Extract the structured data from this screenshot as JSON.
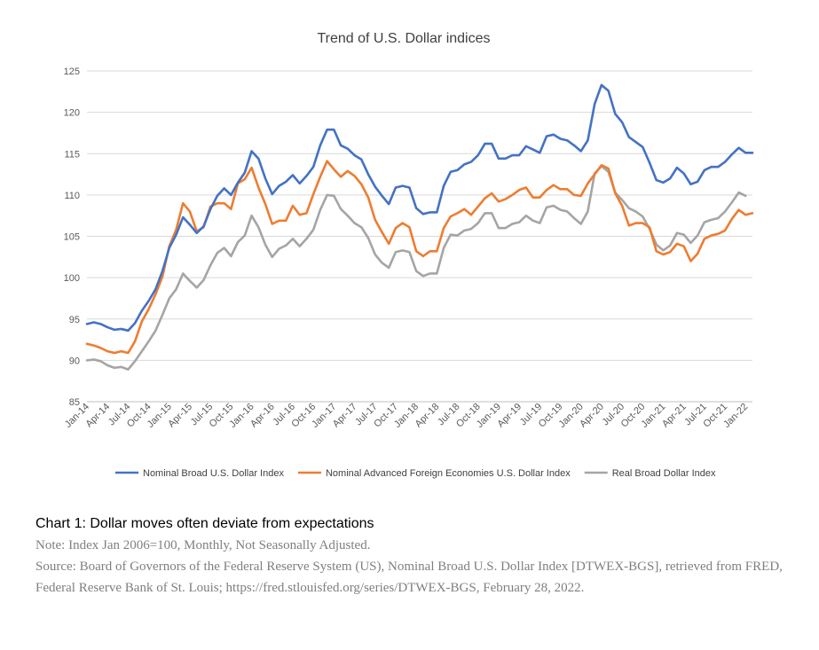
{
  "chart_data": {
    "type": "line",
    "title": "Trend of U.S. Dollar indices",
    "xlabel": "",
    "ylabel": "",
    "ylim": [
      85,
      125
    ],
    "yticks": [
      85,
      90,
      95,
      100,
      105,
      110,
      115,
      120,
      125
    ],
    "grid": true,
    "legend_position": "bottom",
    "x_tick_labels": [
      "Jan-14",
      "Apr-14",
      "Jul-14",
      "Oct-14",
      "Jan-15",
      "Apr-15",
      "Jul-15",
      "Oct-15",
      "Jan-16",
      "Apr-16",
      "Jul-16",
      "Oct-16",
      "Jan-17",
      "Apr-17",
      "Jul-17",
      "Oct-17",
      "Jan-18",
      "Apr-18",
      "Jul-18",
      "Oct-18",
      "Jan-19",
      "Apr-19",
      "Jul-19",
      "Oct-19",
      "Jan-20",
      "Apr-20",
      "Jul-20",
      "Oct-20",
      "Jan-21",
      "Apr-21",
      "Jul-21",
      "Oct-21",
      "Jan-22"
    ],
    "series": [
      {
        "name": "Nominal Broad U.S. Dollar Index",
        "color": "#4472C4",
        "values": [
          94.4,
          94.6,
          94.4,
          94.0,
          93.7,
          93.8,
          93.6,
          94.5,
          96.0,
          97.2,
          98.6,
          100.8,
          103.6,
          105.2,
          107.3,
          106.4,
          105.4,
          106.2,
          108.3,
          109.9,
          110.8,
          110.0,
          111.5,
          112.7,
          115.3,
          114.4,
          112.0,
          110.1,
          111.1,
          111.6,
          112.4,
          111.4,
          112.3,
          113.4,
          116.0,
          117.9,
          117.9,
          116.0,
          115.6,
          114.8,
          114.3,
          112.5,
          111.0,
          109.9,
          108.9,
          110.9,
          111.1,
          110.9,
          108.4,
          107.7,
          107.9,
          107.9,
          111.1,
          112.8,
          113.0,
          113.7,
          114.0,
          114.8,
          116.2,
          116.2,
          114.4,
          114.4,
          114.8,
          114.8,
          115.9,
          115.5,
          115.1,
          117.1,
          117.3,
          116.8,
          116.6,
          116.0,
          115.3,
          116.6,
          121.0,
          123.3,
          122.6,
          119.8,
          118.8,
          117.0,
          116.4,
          115.8,
          113.9,
          111.8,
          111.5,
          112.0,
          113.3,
          112.6,
          111.3,
          111.6,
          113.0,
          113.4,
          113.4,
          114.0,
          114.9,
          115.7,
          115.1,
          115.1
        ]
      },
      {
        "name": "Nominal Advanced Foreign Economies U.S. Dollar Index",
        "color": "#ED7D31",
        "values": [
          92.0,
          91.8,
          91.5,
          91.1,
          90.9,
          91.1,
          90.9,
          92.3,
          94.7,
          96.2,
          98.0,
          100.1,
          103.8,
          105.8,
          109.0,
          108.0,
          105.6,
          106.1,
          108.6,
          109.0,
          109.0,
          108.3,
          111.4,
          111.9,
          113.3,
          110.9,
          108.9,
          106.5,
          106.9,
          106.9,
          108.7,
          107.6,
          107.8,
          110.1,
          112.2,
          114.1,
          113.1,
          112.2,
          112.9,
          112.3,
          111.3,
          109.7,
          107.0,
          105.5,
          104.1,
          106.0,
          106.6,
          106.1,
          103.2,
          102.6,
          103.2,
          103.2,
          106.0,
          107.4,
          107.8,
          108.3,
          107.6,
          108.6,
          109.6,
          110.2,
          109.2,
          109.5,
          110.0,
          110.6,
          110.9,
          109.7,
          109.7,
          110.6,
          111.2,
          110.7,
          110.7,
          110.0,
          109.9,
          111.4,
          112.5,
          113.6,
          113.2,
          110.2,
          108.7,
          106.3,
          106.6,
          106.6,
          106.1,
          103.2,
          102.8,
          103.1,
          104.1,
          103.8,
          102.0,
          102.9,
          104.7,
          105.1,
          105.3,
          105.7,
          107.1,
          108.2,
          107.6,
          107.8
        ]
      },
      {
        "name": "Real Broad Dollar Index",
        "color": "#A5A5A5",
        "values": [
          90.0,
          90.1,
          89.9,
          89.4,
          89.1,
          89.2,
          88.9,
          89.9,
          91.1,
          92.3,
          93.6,
          95.5,
          97.5,
          98.6,
          100.5,
          99.6,
          98.8,
          99.7,
          101.5,
          103.0,
          103.6,
          102.6,
          104.3,
          105.1,
          107.5,
          106.1,
          104.0,
          102.5,
          103.5,
          103.9,
          104.7,
          103.8,
          104.7,
          105.8,
          108.2,
          110.0,
          109.9,
          108.3,
          107.5,
          106.6,
          106.1,
          104.8,
          102.8,
          101.8,
          101.2,
          103.1,
          103.3,
          103.1,
          100.8,
          100.2,
          100.5,
          100.5,
          103.6,
          105.2,
          105.1,
          105.7,
          105.9,
          106.6,
          107.8,
          107.8,
          106.0,
          106.0,
          106.5,
          106.7,
          107.5,
          106.9,
          106.6,
          108.5,
          108.7,
          108.2,
          108.0,
          107.2,
          106.5,
          108.0,
          112.6,
          113.5,
          112.8,
          110.3,
          109.4,
          108.4,
          108.0,
          107.4,
          105.9,
          104.0,
          103.3,
          103.9,
          105.4,
          105.2,
          104.2,
          105.1,
          106.7,
          107.0,
          107.2,
          108.0,
          109.1,
          110.3,
          109.9,
          null
        ]
      }
    ]
  },
  "caption": {
    "title": "Chart 1: Dollar moves often deviate from expectations",
    "note": "Note: Index Jan 2006=100, Monthly, Not Seasonally Adjusted.",
    "source": "Source: Board of Governors of the Federal Reserve System (US), Nominal Broad U.S. Dollar Index [DTWEX-BGS], retrieved from FRED, Federal Reserve Bank of St. Louis; https://fred.stlouisfed.org/series/DTWEX-BGS, February 28, 2022."
  }
}
